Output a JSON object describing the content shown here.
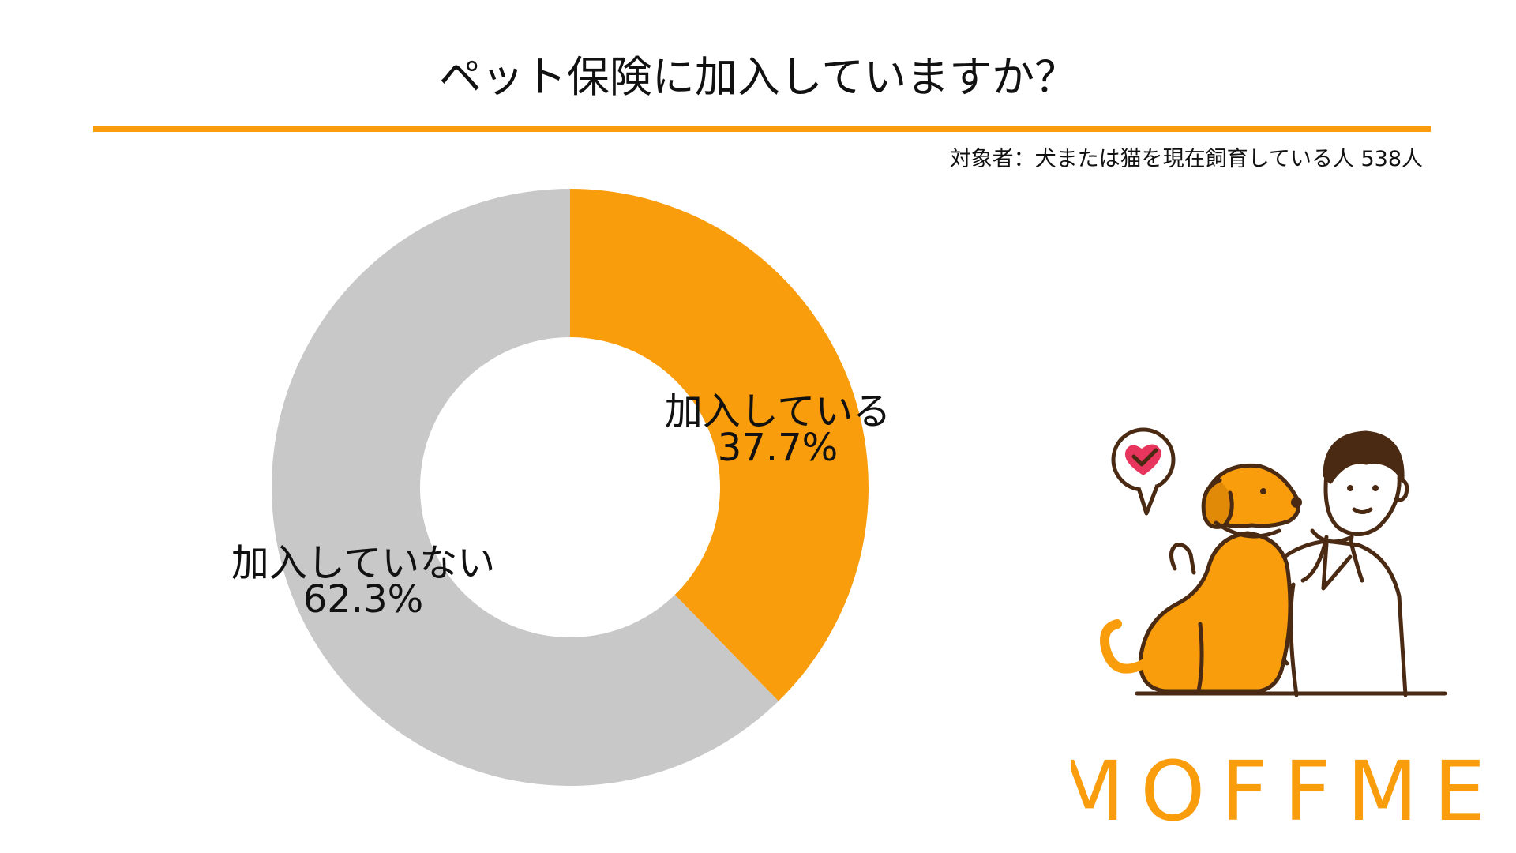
{
  "colors": {
    "accent": "#F99D0C",
    "gray": "#C8C8C8",
    "text": "#111111",
    "brown": "#4A2A12"
  },
  "chart_data": {
    "type": "pie",
    "style": "donut",
    "title": "ペット保険に加入していますか？",
    "subtitle": "対象者：犬または猫を現在飼育している人 538人",
    "slices": [
      {
        "label": "加入している",
        "value": 37.7,
        "value_label": "37.7%",
        "color": "#F99D0C"
      },
      {
        "label": "加入していない",
        "value": 62.3,
        "value_label": "62.3%",
        "color": "#C8C8C8"
      }
    ]
  },
  "brand": {
    "logo_text": "MOFFME",
    "illustration": "veterinarian-with-dog-icon",
    "badge_icon": "heart-check-icon"
  }
}
